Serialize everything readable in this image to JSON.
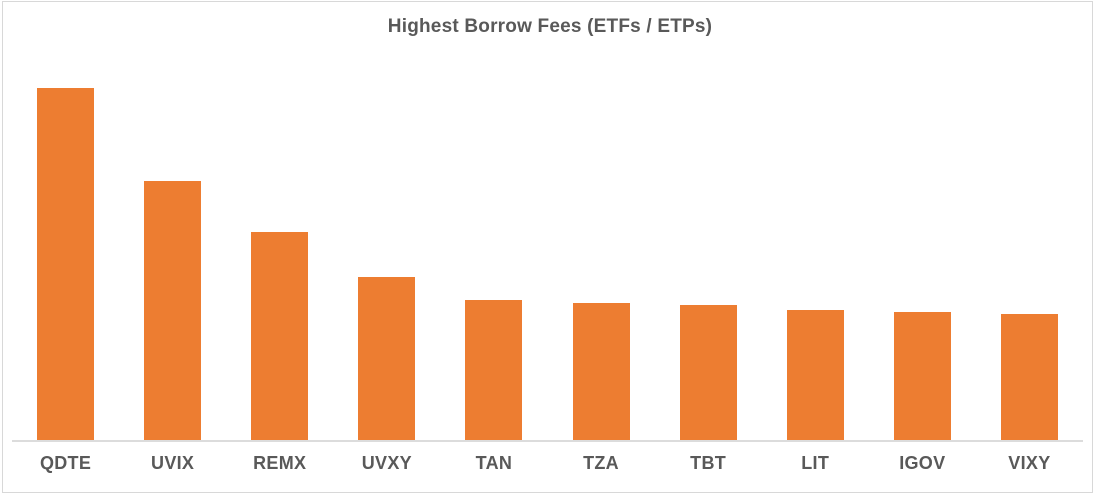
{
  "chart_data": {
    "type": "bar",
    "title": "Highest Borrow Fees (ETFs / ETPs)",
    "categories": [
      "QDTE",
      "UVIX",
      "REMX",
      "UVXY",
      "TAN",
      "TZA",
      "TBT",
      "LIT",
      "IGOV",
      "VIXY"
    ],
    "values": [
      352,
      259,
      208,
      163,
      140,
      137,
      135,
      130,
      128,
      126
    ],
    "value_unit": "relative bar height (no y-axis labels shown)",
    "xlabel": "",
    "ylabel": "",
    "ylim": [
      0,
      352
    ],
    "grid": false,
    "legend": "none",
    "y_axis_visible": false,
    "bar_color": "#ED7D31"
  },
  "colors": {
    "bar": "#ED7D31",
    "title_text": "#595959",
    "tick_label_text": "#595959",
    "axis_line": "#DCDCDC",
    "frame_border": "#D8D8D8",
    "background": "#FFFFFF"
  }
}
